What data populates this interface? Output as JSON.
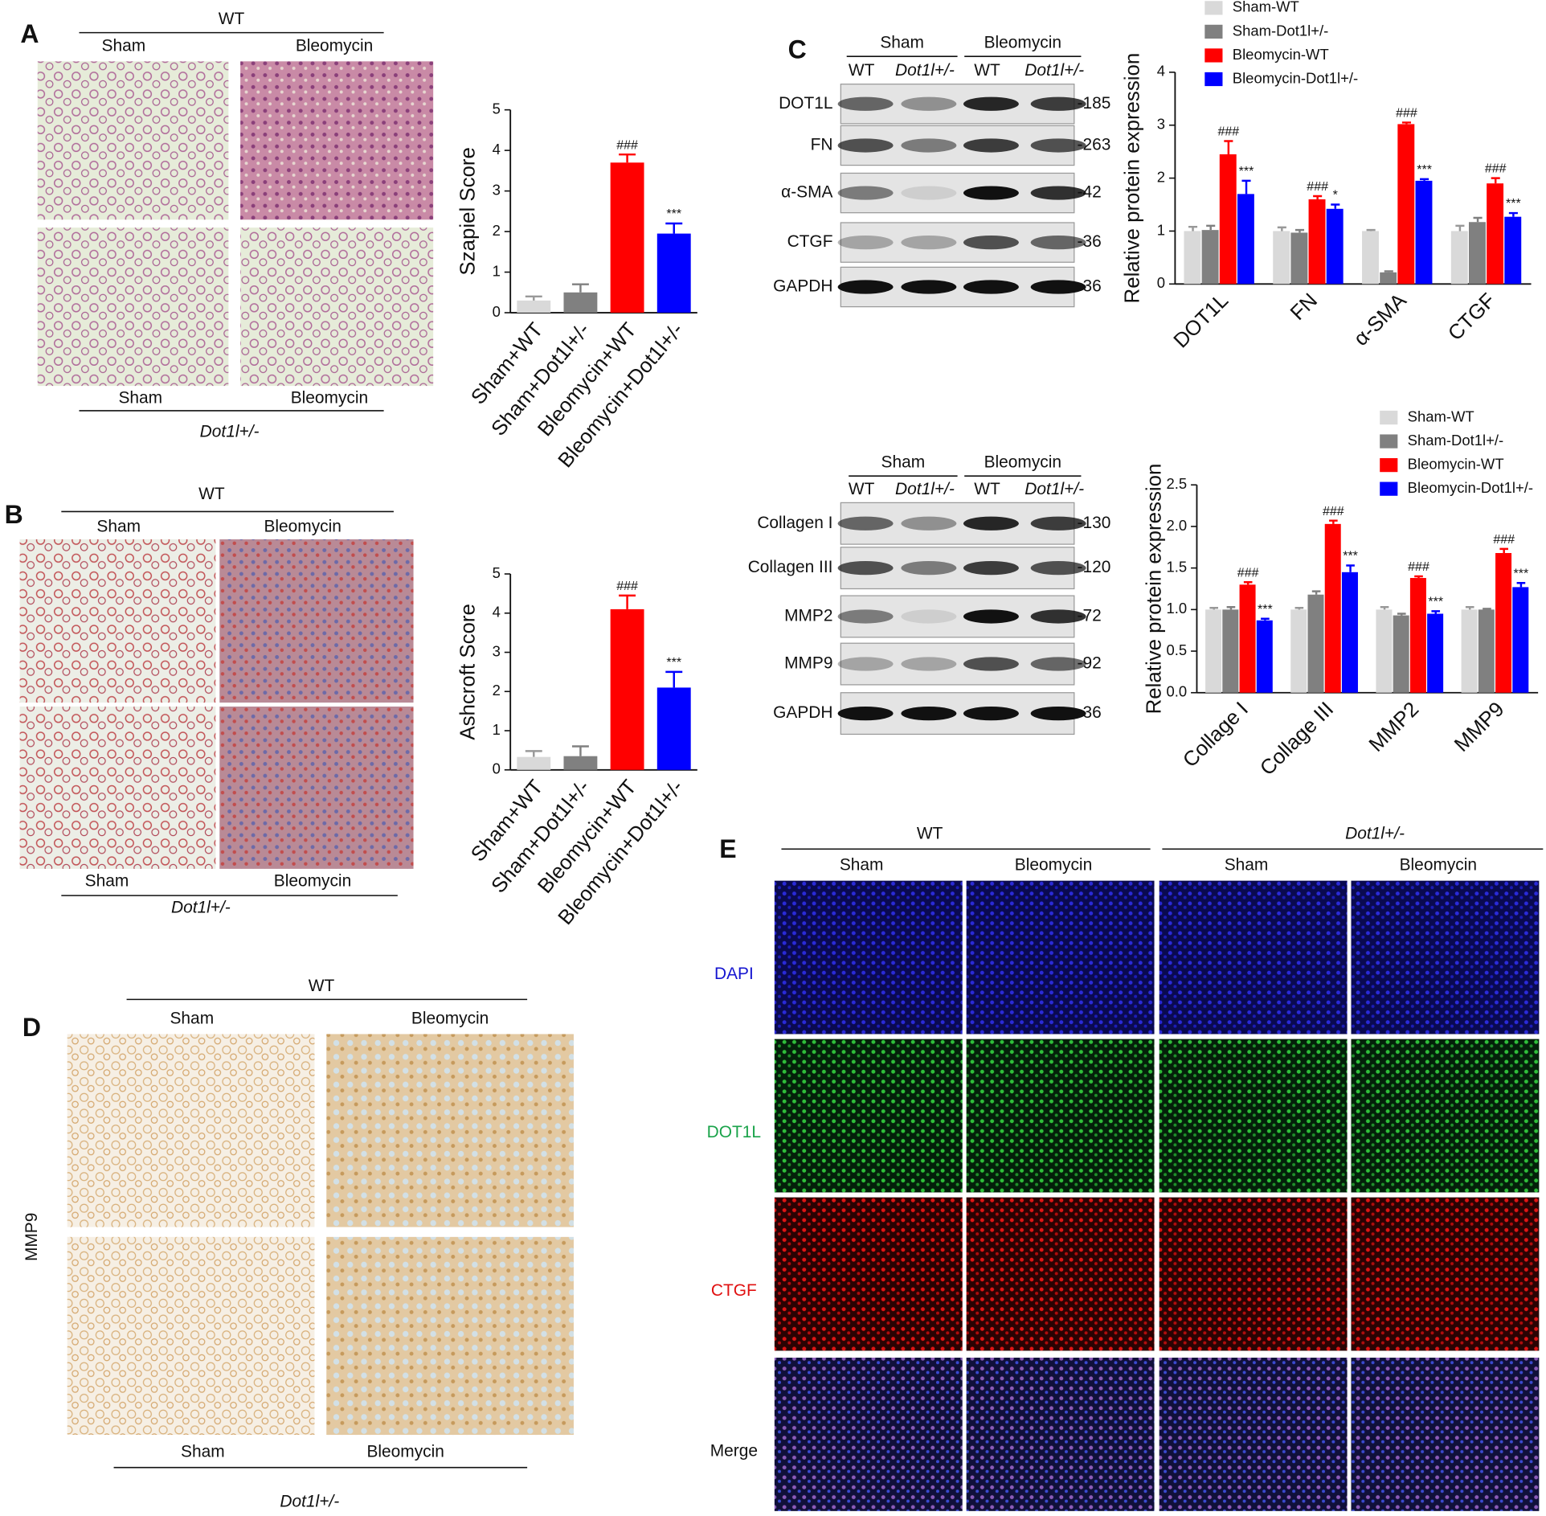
{
  "chart_data": [
    {
      "type": "bar",
      "y_label": "Szapiel Score",
      "categories": [
        "Sham+WT",
        "Sham+Dot1l+/-",
        "Bleomycin+WT",
        "Bleomycin+Dot1l+/-"
      ],
      "values": [
        0.3,
        0.5,
        3.7,
        1.95
      ],
      "errors": [
        0.1,
        0.2,
        0.2,
        0.25
      ],
      "colors": [
        "#d9d9d9",
        "#808080",
        "#ff0000",
        "#0000ff"
      ],
      "annotations": [
        null,
        null,
        "###",
        "***"
      ],
      "ylim": [
        0,
        5
      ],
      "yticks": [
        0,
        1,
        2,
        3,
        4,
        5
      ]
    },
    {
      "type": "bar",
      "y_label": "Ashcroft Score",
      "categories": [
        "Sham+WT",
        "Sham+Dot1l+/-",
        "Bleomycin+WT",
        "Bleomycin+Dot1l+/-"
      ],
      "values": [
        0.33,
        0.35,
        4.1,
        2.1
      ],
      "errors": [
        0.15,
        0.25,
        0.35,
        0.4
      ],
      "colors": [
        "#d9d9d9",
        "#808080",
        "#ff0000",
        "#0000ff"
      ],
      "annotations": [
        null,
        null,
        "###",
        "***"
      ],
      "ylim": [
        0,
        5
      ],
      "yticks": [
        0,
        1,
        2,
        3,
        4,
        5
      ]
    },
    {
      "type": "bar",
      "y_label": "Relative protein expression",
      "categories": [
        "DOT1L",
        "FN",
        "α-SMA",
        "CTGF"
      ],
      "series": [
        {
          "name": "Sham-WT",
          "color": "#d9d9d9",
          "values": [
            1,
            1,
            1,
            1
          ],
          "errors": [
            0.08,
            0.07,
            0.02,
            0.1
          ]
        },
        {
          "name": "Sham-Dot1l+/-",
          "color": "#808080",
          "values": [
            1.02,
            0.97,
            0.22,
            1.17
          ],
          "errors": [
            0.08,
            0.05,
            0.02,
            0.08
          ]
        },
        {
          "name": "Bleomycin-WT",
          "color": "#ff0000",
          "values": [
            2.45,
            1.6,
            3.02,
            1.9
          ],
          "errors": [
            0.25,
            0.06,
            0.03,
            0.1
          ],
          "annotations": [
            "###",
            "###",
            "###",
            "###"
          ]
        },
        {
          "name": "Bleomycin-Dot1l+/-",
          "color": "#0000ff",
          "values": [
            1.7,
            1.42,
            1.95,
            1.27
          ],
          "errors": [
            0.25,
            0.08,
            0.03,
            0.07
          ],
          "annotations": [
            "***",
            "*",
            "***",
            "***"
          ]
        }
      ],
      "ylim": [
        0,
        4
      ],
      "yticks": [
        0,
        1,
        2,
        3,
        4
      ]
    },
    {
      "type": "bar",
      "y_label": "Relative protein expression",
      "categories": [
        "Collage I",
        "Collage III",
        "MMP2",
        "MMP9"
      ],
      "series": [
        {
          "name": "Sham-WT",
          "color": "#d9d9d9",
          "values": [
            1,
            1,
            1,
            1
          ],
          "errors": [
            0.02,
            0.02,
            0.03,
            0.03
          ]
        },
        {
          "name": "Sham-Dot1l+/-",
          "color": "#808080",
          "values": [
            1,
            1.18,
            0.93,
            1.0
          ],
          "errors": [
            0.03,
            0.04,
            0.02,
            0.01
          ]
        },
        {
          "name": "Bleomycin-WT",
          "color": "#ff0000",
          "values": [
            1.3,
            2.03,
            1.38,
            1.68
          ],
          "errors": [
            0.03,
            0.04,
            0.02,
            0.05
          ],
          "annotations": [
            "###",
            "###",
            "###",
            "###"
          ]
        },
        {
          "name": "Bleomycin-Dot1l+/-",
          "color": "#0000ff",
          "values": [
            0.87,
            1.45,
            0.95,
            1.27
          ],
          "errors": [
            0.02,
            0.08,
            0.03,
            0.05
          ],
          "annotations": [
            "***",
            "***",
            "***",
            "***"
          ]
        }
      ],
      "ylim": [
        0,
        2.5
      ],
      "yticks": [
        {
          "value": 0,
          "label": "0.0"
        },
        0.5,
        {
          "value": 1,
          "label": "1.0"
        },
        1.5,
        {
          "value": 2,
          "label": "2.0"
        },
        2.5
      ]
    }
  ],
  "panels": {
    "A": {
      "label": "A",
      "top_group": "WT",
      "top_left": "Sham",
      "top_right": "Bleomycin",
      "bottom_left": "Sham",
      "bottom_right": "Bleomycin",
      "bottom_group": "Dot1l+/-"
    },
    "B": {
      "label": "B",
      "top_group": "WT",
      "top_left": "Sham",
      "top_right": "Bleomycin",
      "bottom_left": "Sham",
      "bottom_right": "Bleomycin",
      "bottom_group": "Dot1l+/-"
    },
    "C": {
      "label": "C",
      "blots": [
        {
          "groups": [
            "Sham",
            "Bleomycin"
          ],
          "lanes": [
            "WT",
            "Dot1l+/-",
            "WT",
            "Dot1l+/-"
          ],
          "rows": [
            {
              "name": "DOT1L",
              "size": "-185"
            },
            {
              "name": "FN",
              "size": "-263"
            },
            {
              "name": "α-SMA",
              "size": "-42"
            },
            {
              "name": "CTGF",
              "size": "-36"
            },
            {
              "name": "GAPDH",
              "size": "-36"
            }
          ]
        },
        {
          "groups": [
            "Sham",
            "Bleomycin"
          ],
          "lanes": [
            "WT",
            "Dot1l+/-",
            "WT",
            "Dot1l+/-"
          ],
          "rows": [
            {
              "name": "Collagen I",
              "size": "-130"
            },
            {
              "name": "Collagen III",
              "size": "-120"
            },
            {
              "name": "MMP2",
              "size": "-72"
            },
            {
              "name": "MMP9",
              "size": "-92"
            },
            {
              "name": "GAPDH",
              "size": "-36"
            }
          ]
        }
      ]
    },
    "D": {
      "label": "D",
      "top_group": "WT",
      "top_left": "Sham",
      "top_right": "Bleomycin",
      "row_label": "MMP9",
      "bottom_left": "Sham",
      "bottom_right": "Bleomycin",
      "bottom_group": "Dot1l+/-"
    },
    "E": {
      "label": "E",
      "groups": [
        "WT",
        "Dot1l+/-"
      ],
      "cols": [
        "Sham",
        "Bleomycin",
        "Sham",
        "Bleomycin"
      ],
      "rows": [
        "DAPI",
        "DOT1L",
        "CTGF",
        "Merge"
      ]
    }
  }
}
